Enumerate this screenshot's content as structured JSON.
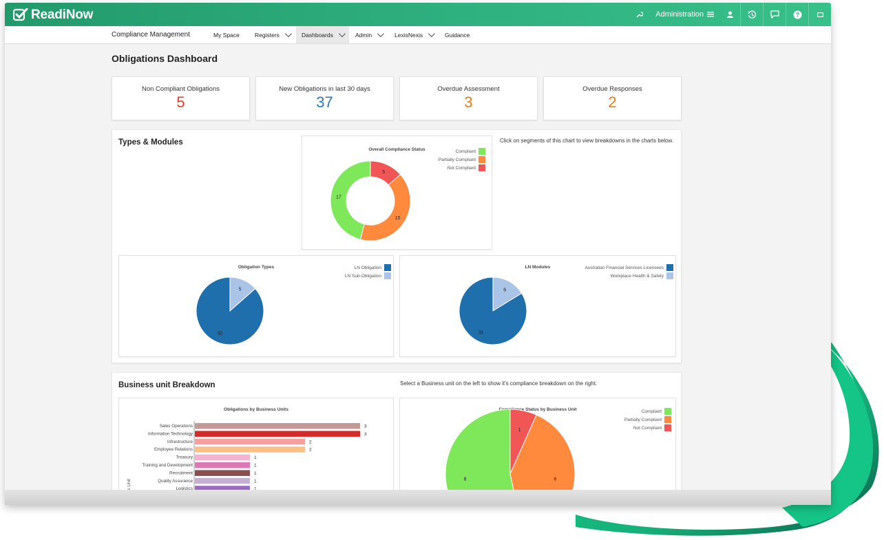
{
  "app": {
    "brand": "ReadiNow"
  },
  "topbar": {
    "admin_label": "Administration",
    "icons": [
      "wrench-icon",
      "menu-icon",
      "user-icon",
      "history-icon",
      "chat-icon",
      "help-icon",
      "expand-icon"
    ]
  },
  "nav": {
    "title": "Compliance Management",
    "items": [
      {
        "label": "My Space"
      },
      {
        "label": "Registers"
      },
      {
        "label": "Dashboards"
      },
      {
        "label": "Admin"
      },
      {
        "label": "LexisNexis"
      },
      {
        "label": "Guidance"
      }
    ]
  },
  "page": {
    "title": "Obligations Dashboard"
  },
  "stats": [
    {
      "label": "Non Compliant Obligations",
      "value": "5",
      "color": "#e23b2e"
    },
    {
      "label": "New Obligations in last 30 days",
      "value": "37",
      "color": "#2878b6"
    },
    {
      "label": "Overdue Assessment",
      "value": "3",
      "color": "#e87a18"
    },
    {
      "label": "Overdue Responses",
      "value": "2",
      "color": "#e87a18"
    }
  ],
  "types_modules": {
    "title": "Types & Modules",
    "hint": "Click on segments of this chart to view breakdowns in the charts below."
  },
  "business": {
    "title": "Business unit Breakdown",
    "hint": "Select a Business unit on the left to show it's compliance breakdown on the right."
  },
  "chart_data": [
    {
      "type": "pie",
      "variant": "donut",
      "title": "Overall Compliance Status",
      "series": [
        {
          "name": "Compliant",
          "value": 17,
          "color": "#7fe85a"
        },
        {
          "name": "Partially Compliant",
          "value": 15,
          "color": "#ff8a3d"
        },
        {
          "name": "Not Compliant",
          "value": 5,
          "color": "#f05656"
        }
      ]
    },
    {
      "type": "pie",
      "title": "Obligation Types",
      "series": [
        {
          "name": "LN Obligation",
          "value": 32,
          "color": "#1f6fad"
        },
        {
          "name": "LN Sub-Obligation",
          "value": 5,
          "color": "#a9c4e6"
        }
      ]
    },
    {
      "type": "pie",
      "title": "LN Modules",
      "series": [
        {
          "name": "Australian Financial Services Licensees",
          "value": 31,
          "color": "#1f6fad"
        },
        {
          "name": "Workplace Health & Safety",
          "value": 6,
          "color": "#a9c4e6"
        }
      ]
    },
    {
      "type": "bar",
      "orientation": "horizontal",
      "title": "Obligations by Business Units",
      "ylabel": "Business Unit",
      "categories": [
        "Sales Operations",
        "Information Technology",
        "Infrastructure",
        "Employee Relations",
        "Treasury",
        "Training and Development",
        "Recruitment",
        "Quality Assurance",
        "Logistics"
      ],
      "values": [
        3,
        3,
        2,
        2,
        1,
        1,
        1,
        1,
        1
      ],
      "colors": [
        "#c49a98",
        "#d42a2a",
        "#f79e9e",
        "#fbc085",
        "#f4b3cf",
        "#dc78b4",
        "#8b4e4e",
        "#c5b0d4",
        "#9b6ac0"
      ]
    },
    {
      "type": "pie",
      "title": "Compliance Status by Business Unit",
      "series": [
        {
          "name": "Compliant",
          "value": 8,
          "color": "#7fe85a"
        },
        {
          "name": "Partially Compliant",
          "value": 6,
          "color": "#ff8a3d"
        },
        {
          "name": "Not Compliant",
          "value": 1,
          "color": "#f05656"
        }
      ]
    }
  ]
}
